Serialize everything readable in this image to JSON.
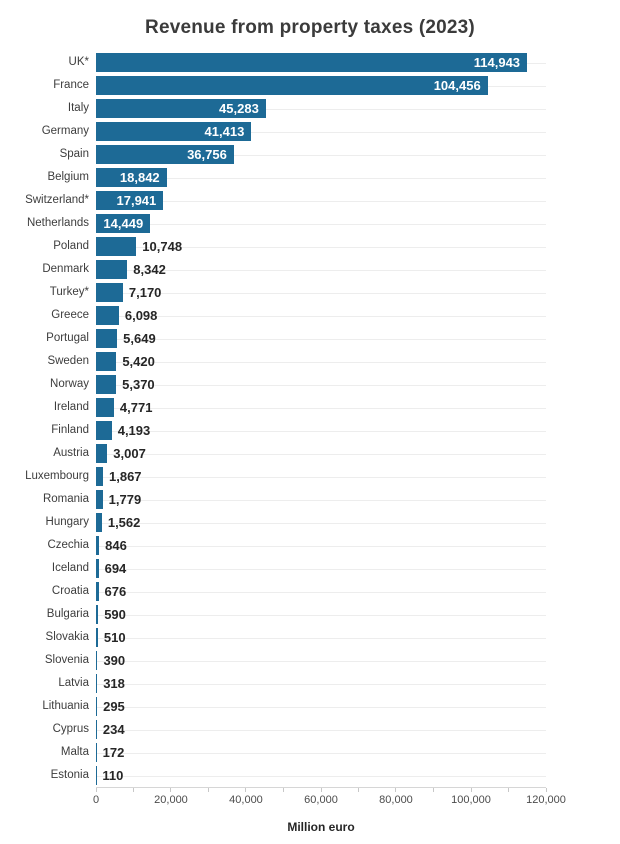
{
  "title": "Revenue from property taxes (2023)",
  "chart_data": {
    "type": "bar",
    "orientation": "horizontal",
    "title": "Revenue from property taxes (2023)",
    "xlabel": "Million euro",
    "ylabel": "",
    "xlim": [
      0,
      120000
    ],
    "grid": "per-row horizontal gridlines",
    "bar_color": "#1d6a96",
    "inside_value_label_color": "#ffffff",
    "outside_value_label_color": "#262626",
    "categories": [
      "UK*",
      "France",
      "Italy",
      "Germany",
      "Spain",
      "Belgium",
      "Switzerland*",
      "Netherlands",
      "Poland",
      "Denmark",
      "Turkey*",
      "Greece",
      "Portugal",
      "Sweden",
      "Norway",
      "Ireland",
      "Finland",
      "Austria",
      "Luxembourg",
      "Romania",
      "Hungary",
      "Czechia",
      "Iceland",
      "Croatia",
      "Bulgaria",
      "Slovakia",
      "Slovenia",
      "Latvia",
      "Lithuania",
      "Cyprus",
      "Malta",
      "Estonia"
    ],
    "values": [
      114943,
      104456,
      45283,
      41413,
      36756,
      18842,
      17941,
      14449,
      10748,
      8342,
      7170,
      6098,
      5649,
      5420,
      5370,
      4771,
      4193,
      3007,
      1867,
      1779,
      1562,
      846,
      694,
      676,
      590,
      510,
      390,
      318,
      295,
      234,
      172,
      110
    ],
    "value_labels": [
      "114,943",
      "104,456",
      "45,283",
      "41,413",
      "36,756",
      "18,842",
      "17,941",
      "14,449",
      "10,748",
      "8,342",
      "7,170",
      "6,098",
      "5,649",
      "5,420",
      "5,370",
      "4,771",
      "4,193",
      "3,007",
      "1,867",
      "1,779",
      "1,562",
      "846",
      "694",
      "676",
      "590",
      "510",
      "390",
      "318",
      "295",
      "234",
      "172",
      "110"
    ],
    "x_tick_labels": [
      "0",
      "20,000",
      "40,000",
      "60,000",
      "80,000",
      "100,000",
      "120,000"
    ],
    "x_major_tick_step": 20000,
    "x_minor_tick_step": 10000
  }
}
